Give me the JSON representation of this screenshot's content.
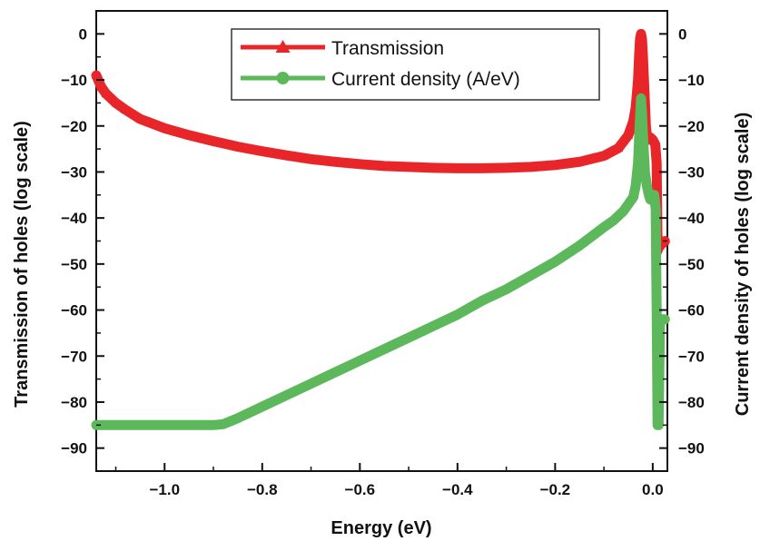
{
  "chart_data": {
    "type": "line",
    "xlabel": "Energy (eV)",
    "ylabel_left": "Transmission of holes (log scale)",
    "ylabel_right": "Current density of holes (log scale)",
    "xlim": [
      -1.14,
      0.03
    ],
    "ylim": [
      -95,
      5
    ],
    "x_ticks": [
      -1.0,
      -0.8,
      -0.6,
      -0.4,
      -0.2,
      0.0
    ],
    "x_tick_labels": [
      "−1.0",
      "−0.8",
      "−0.6",
      "−0.4",
      "−0.2",
      "0.0"
    ],
    "y_ticks": [
      0,
      -10,
      -20,
      -30,
      -40,
      -50,
      -60,
      -70,
      -80,
      -90
    ],
    "y_tick_labels_left": [
      "0",
      "−10",
      "−20",
      "−30",
      "−40",
      "−50",
      "−60",
      "−70",
      "−80",
      "−90"
    ],
    "y_tick_labels_right": [
      "0",
      "−10",
      "−20",
      "−30",
      "−40",
      "−50",
      "−60",
      "−70",
      "−80",
      "−90"
    ],
    "grid": false,
    "legend_position": "top-center",
    "series": [
      {
        "name": "Transmission",
        "color": "#e8262a",
        "marker": "triangle",
        "x": [
          -1.14,
          -1.13,
          -1.12,
          -1.1,
          -1.08,
          -1.05,
          -1.0,
          -0.95,
          -0.9,
          -0.85,
          -0.8,
          -0.75,
          -0.7,
          -0.65,
          -0.6,
          -0.55,
          -0.5,
          -0.45,
          -0.4,
          -0.35,
          -0.3,
          -0.25,
          -0.2,
          -0.15,
          -0.1,
          -0.07,
          -0.05,
          -0.04,
          -0.035,
          -0.03,
          -0.028,
          -0.026,
          -0.024,
          -0.022,
          -0.02,
          -0.018,
          -0.016,
          -0.014,
          -0.012,
          -0.01,
          -0.005,
          0.0,
          0.005,
          0.008,
          0.01,
          0.012,
          0.015,
          0.02,
          0.025
        ],
        "values": [
          -9,
          -11.5,
          -13,
          -15,
          -16.5,
          -18.5,
          -20.5,
          -22,
          -23.3,
          -24.5,
          -25.5,
          -26.4,
          -27.2,
          -27.8,
          -28.3,
          -28.7,
          -28.9,
          -29.1,
          -29.2,
          -29.2,
          -29.1,
          -28.9,
          -28.5,
          -27.8,
          -26.5,
          -24.8,
          -22,
          -19,
          -16,
          -10,
          -5,
          -1,
          0,
          -1,
          -5,
          -10,
          -15,
          -20,
          -22,
          -23,
          -22.5,
          -23,
          -24,
          -28,
          -47,
          -46.5,
          -46,
          -45.5,
          -45
        ]
      },
      {
        "name": "Current density (A/eV)",
        "color": "#5cb85a",
        "marker": "circle",
        "x": [
          -1.14,
          -1.1,
          -1.05,
          -1.0,
          -0.95,
          -0.9,
          -0.88,
          -0.85,
          -0.8,
          -0.75,
          -0.7,
          -0.65,
          -0.6,
          -0.55,
          -0.5,
          -0.45,
          -0.4,
          -0.35,
          -0.3,
          -0.25,
          -0.2,
          -0.15,
          -0.1,
          -0.08,
          -0.06,
          -0.05,
          -0.04,
          -0.035,
          -0.03,
          -0.027,
          -0.024,
          -0.022,
          -0.02,
          -0.018,
          -0.016,
          -0.012,
          -0.008,
          -0.005,
          0.0,
          0.003,
          0.006,
          0.008,
          0.01,
          0.012,
          0.015,
          0.02,
          0.025
        ],
        "values": [
          -85,
          -85,
          -85,
          -85,
          -85,
          -85,
          -84.8,
          -83.5,
          -81,
          -78.5,
          -76,
          -73.5,
          -71,
          -68.5,
          -66,
          -63.5,
          -61,
          -58,
          -55.5,
          -52.5,
          -49.5,
          -46,
          -42,
          -40.5,
          -38.5,
          -37,
          -35.5,
          -33,
          -28,
          -20,
          -14,
          -17,
          -22,
          -26,
          -30,
          -33,
          -35,
          -36,
          -35.5,
          -35,
          -38,
          -60,
          -85,
          -85,
          -62,
          -62,
          -62
        ]
      }
    ]
  }
}
